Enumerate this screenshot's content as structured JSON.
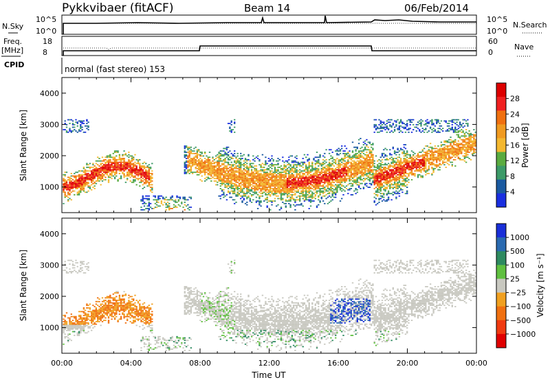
{
  "header": {
    "station": "Pykkvibaer (fitACF)",
    "beam": "Beam 14",
    "date": "06/Feb/2014"
  },
  "nsky_panel": {
    "left_label": "N.Sky",
    "right_label": "N.Search",
    "ticks": [
      "10^5",
      "10^0"
    ]
  },
  "freq_panel": {
    "left_label_1": "Freq.",
    "left_label_2": "[MHz]",
    "left_ticks": [
      "18",
      "8"
    ],
    "right_label": "Nave",
    "right_ticks": [
      "60",
      "0"
    ]
  },
  "cpid_panel": {
    "label": "CPID",
    "text": "normal (fast stereo) 153"
  },
  "chart_data": [
    {
      "type": "heatmap",
      "title": "",
      "xlabel": "",
      "ylabel": "Slant Range [km]",
      "xlim": [
        0,
        24
      ],
      "ylim": [
        180,
        4500
      ],
      "y_ticks": [
        1000,
        2000,
        3000,
        4000
      ],
      "colorbar": {
        "label": "Power [dB]",
        "ticks": [
          "28",
          "24",
          "20",
          "16",
          "12",
          "8",
          "4"
        ],
        "colors": [
          "#dd0000",
          "#f02020",
          "#f07010",
          "#f09a20",
          "#f4b830",
          "#5aab40",
          "#3c9a68",
          "#1a5aa0",
          "#1a2fe0"
        ]
      }
    },
    {
      "type": "heatmap",
      "title": "",
      "xlabel": "Time UT",
      "ylabel": "Slant Range [km]",
      "xlim": [
        0,
        24
      ],
      "ylim": [
        180,
        4500
      ],
      "x_ticks": [
        "00:00",
        "04:00",
        "08:00",
        "12:00",
        "16:00",
        "20:00",
        "00:00"
      ],
      "y_ticks": [
        1000,
        2000,
        3000,
        4000
      ],
      "colorbar": {
        "label": "Velocity [m s⁻¹]",
        "ticks": [
          "1000",
          "500",
          "100",
          "25",
          "−25",
          "−100",
          "−500",
          "−1000"
        ],
        "colors": [
          "#1a2fd8",
          "#2a6ab0",
          "#2e8a60",
          "#60c040",
          "#c8c8c0",
          "#f0a020",
          "#f07010",
          "#f03a10",
          "#e00000"
        ]
      }
    }
  ],
  "colors": {
    "power_low": "#1a2fe0",
    "power_mid": "#5aab40",
    "power_high": "#dd0000",
    "velocity_neg": "#f09010",
    "velocity_ground": "#c8c8c0",
    "velocity_pos": "#1a2fd8"
  }
}
